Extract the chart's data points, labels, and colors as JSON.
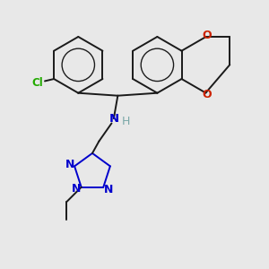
{
  "background_color": "#e8e8e8",
  "bond_color": "#1a1a1a",
  "n_color": "#0000cc",
  "o_color": "#cc2200",
  "cl_color": "#22aa00",
  "h_color": "#7aA8A8",
  "figsize": [
    3.0,
    3.0
  ],
  "dpi": 100,
  "xlim": [
    0,
    10
  ],
  "ylim": [
    0,
    10
  ]
}
